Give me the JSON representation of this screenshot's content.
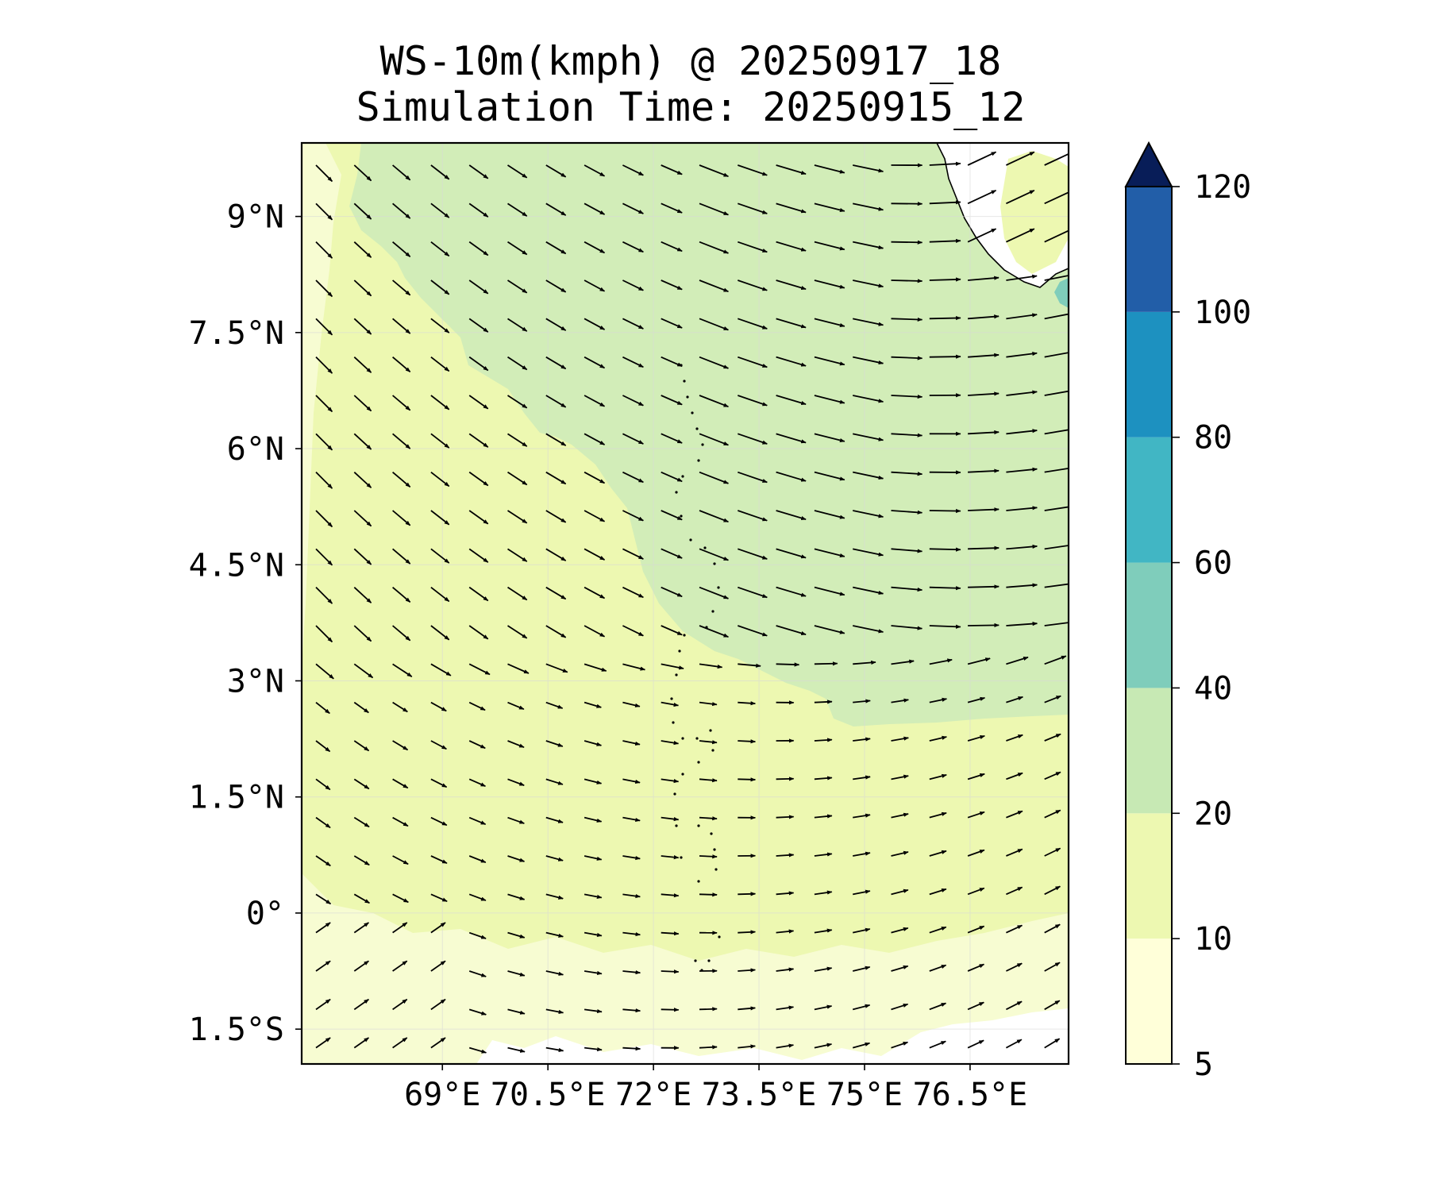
{
  "title": {
    "line1": "WS-10m(kmph) @ 20250917_18",
    "line2": "Simulation Time: 20250915_12"
  },
  "map": {
    "lat_labels": [
      "9°N",
      "7.5°N",
      "6°N",
      "4.5°N",
      "3°N",
      "1.5°N",
      "0°",
      "1.5°S"
    ],
    "lat_values": [
      9,
      7.5,
      6,
      4.5,
      3,
      1.5,
      0,
      -1.5
    ],
    "lon_labels": [
      "69°E",
      "70.5°E",
      "72°E",
      "73.5°E",
      "75°E",
      "76.5°E"
    ],
    "lon_values": [
      69,
      70.5,
      72,
      73.5,
      75,
      76.5
    ],
    "lon_range": [
      67.0,
      77.9
    ],
    "lat_range": [
      -1.95,
      9.95
    ],
    "gridlines": true,
    "field": "10 m wind speed (kmph) with wind direction vectors"
  },
  "colorbar": {
    "levels": [
      5,
      10,
      20,
      40,
      60,
      80,
      100,
      120
    ],
    "tick_labels": [
      "5",
      "10",
      "20",
      "40",
      "60",
      "80",
      "100",
      "120"
    ],
    "colors": [
      "#ffffd9",
      "#edf8b1",
      "#c7e9b4",
      "#7fcdbb",
      "#41b6c4",
      "#1d91c0",
      "#225ea8",
      "#0c2c84"
    ],
    "extend": "max",
    "extend_color": "#081d58"
  },
  "colors": {
    "weak_wind": "#edf8b1",
    "moderate_wind": "#d2edb8",
    "calm": "#ffffff",
    "land_outline": "#000000"
  }
}
